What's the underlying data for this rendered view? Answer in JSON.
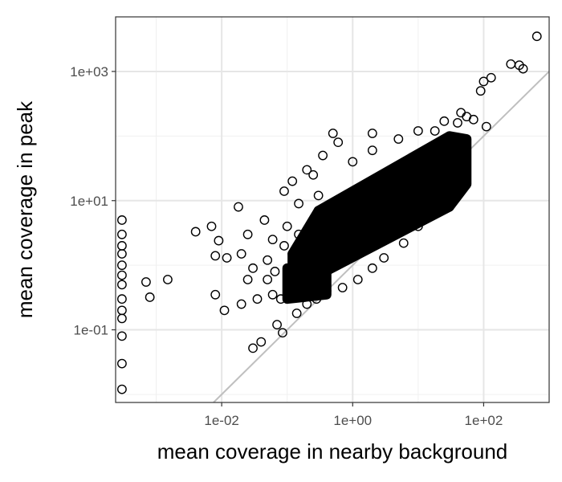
{
  "chart_data": {
    "type": "scatter",
    "title": "",
    "xlabel": "mean coverage in nearby background",
    "ylabel": "mean coverage in peak",
    "x_scale": "log10",
    "y_scale": "log10",
    "xlim": [
      0.00024,
      1000
    ],
    "ylim": [
      0.0075,
      7000
    ],
    "x_ticks": [
      {
        "value": 0.01,
        "label": "1e-02"
      },
      {
        "value": 1,
        "label": "1e+00"
      },
      {
        "value": 100,
        "label": "1e+02"
      }
    ],
    "y_ticks": [
      {
        "value": 0.1,
        "label": "1e-01"
      },
      {
        "value": 10,
        "label": "1e+01"
      },
      {
        "value": 1000,
        "label": "1e+03"
      }
    ],
    "grid": true,
    "reference_line": {
      "slope": 1,
      "intercept": 0,
      "color": "#bfbfbf"
    },
    "point_style": {
      "shape": "open-circle",
      "stroke": "#000000"
    },
    "series": [
      {
        "points": [
          [
            650,
            3500
          ],
          [
            260,
            1300
          ],
          [
            350,
            1250
          ],
          [
            400,
            1100
          ],
          [
            130,
            800
          ],
          [
            100,
            700
          ],
          [
            90,
            500
          ],
          [
            45,
            230
          ],
          [
            55,
            200
          ],
          [
            70,
            180
          ],
          [
            40,
            160
          ],
          [
            110,
            140
          ],
          [
            25,
            170
          ],
          [
            18,
            120
          ],
          [
            0.0003,
            5
          ],
          [
            0.0003,
            3
          ],
          [
            0.0003,
            2
          ],
          [
            0.0003,
            1.5
          ],
          [
            0.0003,
            1
          ],
          [
            0.0003,
            0.7
          ],
          [
            0.0003,
            0.5
          ],
          [
            0.0003,
            0.3
          ],
          [
            0.0003,
            0.2
          ],
          [
            0.0003,
            0.15
          ],
          [
            0.0003,
            0.08
          ],
          [
            0.0003,
            0.03
          ],
          [
            0.0003,
            0.012
          ],
          [
            0.0007,
            0.55
          ],
          [
            0.0008,
            0.32
          ],
          [
            0.0015,
            0.6
          ],
          [
            0.004,
            3.3
          ],
          [
            0.008,
            1.4
          ],
          [
            0.007,
            4
          ],
          [
            0.009,
            2.4
          ],
          [
            0.008,
            0.35
          ],
          [
            0.012,
            1.3
          ],
          [
            0.011,
            0.2
          ],
          [
            0.018,
            8
          ],
          [
            0.02,
            1.5
          ],
          [
            0.025,
            3
          ],
          [
            0.03,
            0.9
          ],
          [
            0.025,
            0.6
          ],
          [
            0.035,
            0.3
          ],
          [
            0.03,
            0.052
          ],
          [
            0.04,
            0.065
          ],
          [
            0.045,
            5
          ],
          [
            0.05,
            1.2
          ],
          [
            0.06,
            2.5
          ],
          [
            0.07,
            0.12
          ],
          [
            0.08,
            0.3
          ],
          [
            0.02,
            0.25
          ],
          [
            0.06,
            0.35
          ],
          [
            0.085,
            0.09
          ],
          [
            0.05,
            0.6
          ],
          [
            0.065,
            0.8
          ],
          [
            0.09,
            14
          ],
          [
            0.12,
            20
          ],
          [
            0.2,
            30
          ],
          [
            0.35,
            50
          ],
          [
            0.6,
            80
          ],
          [
            0.5,
            110
          ],
          [
            2,
            110
          ],
          [
            0.15,
            9
          ],
          [
            0.1,
            4
          ],
          [
            0.14,
            0.18
          ],
          [
            0.2,
            0.25
          ],
          [
            0.28,
            0.3
          ],
          [
            0.4,
            0.4
          ],
          [
            0.7,
            0.45
          ],
          [
            1.2,
            0.6
          ],
          [
            2,
            0.9
          ],
          [
            3,
            1.3
          ],
          [
            6,
            2.2
          ],
          [
            10,
            4
          ],
          [
            20,
            10
          ],
          [
            35,
            22
          ],
          [
            50,
            40
          ],
          [
            2,
            60
          ],
          [
            1,
            40
          ],
          [
            5,
            90
          ],
          [
            10,
            120
          ],
          [
            0.3,
            12
          ],
          [
            0.25,
            25
          ],
          [
            0.15,
            3
          ],
          [
            0.12,
            1.5
          ],
          [
            0.3,
            0.8
          ],
          [
            0.09,
            2
          ]
        ]
      }
    ],
    "density": [
      {
        "x": [
          0.3,
          30
        ],
        "y_lo": [
          0.7,
          8
        ],
        "y_hi": [
          7,
          100
        ]
      },
      {
        "x": [
          0.12,
          0.3
        ],
        "y_lo": [
          0.5,
          0.7
        ],
        "y_hi": [
          1.5,
          7
        ]
      },
      {
        "x": [
          30,
          55
        ],
        "y_lo": [
          8,
          18
        ],
        "y_hi": [
          100,
          90
        ]
      },
      {
        "x": [
          0.1,
          0.4
        ],
        "y_lo": [
          0.3,
          0.35
        ],
        "y_hi": [
          0.9,
          1.0
        ]
      }
    ]
  }
}
